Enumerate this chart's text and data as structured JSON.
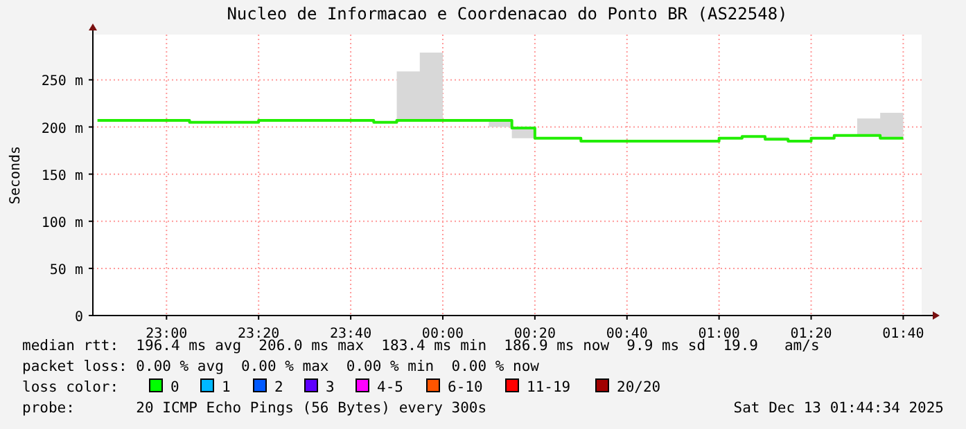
{
  "chart_data": {
    "type": "step",
    "title": "Nucleo de Informacao e Coordenacao do Ponto BR (AS22548)",
    "ylabel": "Seconds",
    "x": [
      "2025-12-12T22:45",
      "2025-12-12T23:05",
      "2025-12-12T23:20",
      "2025-12-12T23:45",
      "2025-12-12T23:50",
      "2025-12-12T23:55",
      "2025-12-13T00:00",
      "2025-12-13T00:10",
      "2025-12-13T00:15",
      "2025-12-13T00:20",
      "2025-12-13T00:30",
      "2025-12-13T01:00",
      "2025-12-13T01:05",
      "2025-12-13T01:10",
      "2025-12-13T01:15",
      "2025-12-13T01:20",
      "2025-12-13T01:25",
      "2025-12-13T01:30",
      "2025-12-13T01:35",
      "2025-12-13T01:40"
    ],
    "series": [
      {
        "color": "#22ee00",
        "values": [
          207,
          205,
          207,
          205,
          207,
          207,
          207,
          207,
          199,
          188,
          185,
          188,
          190,
          187,
          185,
          188,
          191,
          191,
          188,
          188
        ],
        "lower": [
          207,
          205,
          207,
          205,
          207,
          207,
          207,
          200,
          188,
          188,
          185,
          188,
          190,
          187,
          185,
          188,
          191,
          191,
          188,
          188
        ],
        "upper": [
          207,
          205,
          207,
          205,
          259,
          279,
          207,
          207,
          199,
          188,
          185,
          188,
          190,
          189,
          185,
          188,
          191,
          209,
          215,
          215
        ]
      }
    ],
    "xlim": [
      "2025-12-12T22:44",
      "2025-12-13T01:44"
    ],
    "xticks": [
      {
        "value": "2025-12-12T23:00",
        "label": "23:00"
      },
      {
        "value": "2025-12-12T23:20",
        "label": "23:20"
      },
      {
        "value": "2025-12-12T23:40",
        "label": "23:40"
      },
      {
        "value": "2025-12-13T00:00",
        "label": "00:00"
      },
      {
        "value": "2025-12-13T00:20",
        "label": "00:20"
      },
      {
        "value": "2025-12-13T00:40",
        "label": "00:40"
      },
      {
        "value": "2025-12-13T01:00",
        "label": "01:00"
      },
      {
        "value": "2025-12-13T01:20",
        "label": "01:20"
      },
      {
        "value": "2025-12-13T01:40",
        "label": "01:40"
      }
    ],
    "ylim": [
      0,
      298
    ],
    "yticks": [
      0,
      {
        "value": 50,
        "label": "50 m"
      },
      {
        "value": 100,
        "label": "100 m"
      },
      {
        "value": 150,
        "label": "150 m"
      },
      {
        "value": 200,
        "label": "200 m"
      },
      {
        "value": 250,
        "label": "250 m"
      }
    ],
    "grid": true,
    "annotations": [
      "median rtt:  196.4 ms avg  206.0 ms max  183.4 ms min  186.9 ms now  9.9 ms sd  19.9   am/s",
      "packet loss: 0.00 % avg  0.00 % max  0.00 % min  0.00 % now",
      "loss color:",
      "0",
      "1",
      "2",
      "3",
      "4-5",
      "6-10",
      "11-19",
      "20/20",
      "probe:       20 ICMP Echo Pings (56 Bytes) every 300s",
      "Sat Dec 13 01:44:34 2025"
    ]
  }
}
